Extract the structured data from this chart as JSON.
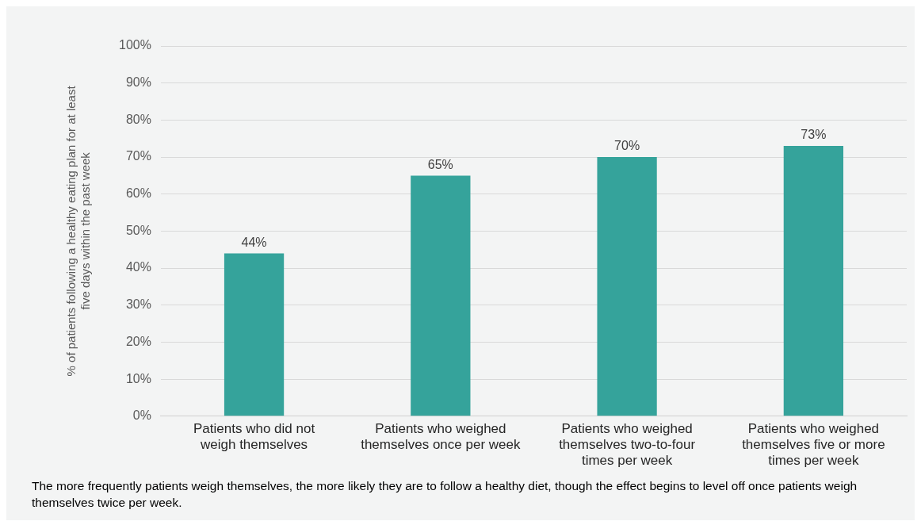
{
  "chart_data": {
    "type": "bar",
    "categories": [
      "Patients who did not weigh themselves",
      "Patients who weighed themselves once per week",
      "Patients who weighed themselves two-to-four times per week",
      "Patients who weighed themselves five or more times per week"
    ],
    "values": [
      44,
      65,
      70,
      73
    ],
    "value_labels": [
      "44%",
      "65%",
      "70%",
      "73%"
    ],
    "color": "#35a39b",
    "ylabel": "% of patients following a healthy eating plan for at least five days within the past week",
    "ylim": [
      0,
      100
    ],
    "yticks": [
      {
        "value": 0,
        "label": "0%"
      },
      {
        "value": 10,
        "label": "10%"
      },
      {
        "value": 20,
        "label": "20%"
      },
      {
        "value": 30,
        "label": "30%"
      },
      {
        "value": 40,
        "label": "40%"
      },
      {
        "value": 50,
        "label": "50%"
      },
      {
        "value": 60,
        "label": "60%"
      },
      {
        "value": 70,
        "label": "70%"
      },
      {
        "value": 80,
        "label": "80%"
      },
      {
        "value": 90,
        "label": "90%"
      },
      {
        "value": 100,
        "label": "100%"
      }
    ],
    "grid": "y",
    "legend": false,
    "annotations": [
      "The more frequently patients weigh themselves, the more likely they are to follow a healthy diet, though the effect begins to level off once patients weigh themselves twice per week."
    ]
  }
}
